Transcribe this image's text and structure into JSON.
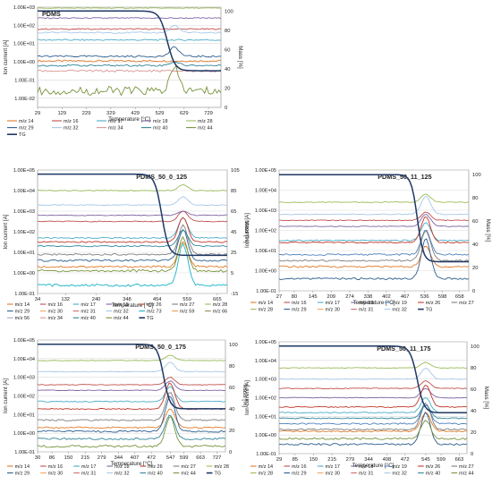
{
  "palette": {
    "m14": "#E07B2B",
    "m16": "#C0504D",
    "m17": "#4BACC6",
    "m18": "#8064A2",
    "m19": "#4F81BD",
    "m26": "#C0392B",
    "m27": "#7F7F7F",
    "m28": "#9BBB59",
    "m29": "#2E5E8E",
    "m30": "#F2A65A",
    "m31": "#D46A6A",
    "m32": "#A6C8E8",
    "m34": "#D99694",
    "m40": "#31859C",
    "m44": "#77933C",
    "m56": "#B3A2C7",
    "m59": "#F79646",
    "m66": "#948A54",
    "m73": "#17B3C4",
    "tg": "#1F3864"
  },
  "chart_data": [
    {
      "type": "line",
      "title": "PDMS",
      "xlabel": "Temperature [°C]",
      "ylabel": "Ion current [A]",
      "ylabel2": "Mass [%]",
      "x_ticks": [
        "29",
        "129",
        "229",
        "329",
        "429",
        "529",
        "629",
        "729"
      ],
      "x_range": [
        29,
        780
      ],
      "y_tick_labels": [
        "1.00E-02",
        "1.00E-01",
        "1.00E+00",
        "1.00E+01",
        "1.00E+02",
        "1.00E+03"
      ],
      "y_log_range": [
        -2.5,
        3
      ],
      "y2_ticks": [
        0,
        20,
        40,
        60,
        80,
        100
      ],
      "y2_range": [
        0,
        104
      ],
      "grid": true,
      "legend_position": "bottom",
      "legend": [
        "m/z 14",
        "m/z 16",
        "m/z 17",
        "m/z 18",
        "m/z 28",
        "m/z 29",
        "m/z 32",
        "m/z 34",
        "m/z 40",
        "m/z 44",
        "TG"
      ],
      "legend_columns": 5,
      "series": [
        {
          "name": "m/z 14",
          "ckey": "m14",
          "base": 0.05,
          "peak": 0,
          "noise": 0.05
        },
        {
          "name": "m/z 16",
          "ckey": "m16",
          "base": 1.8,
          "peak": 0,
          "noise": 0.03
        },
        {
          "name": "m/z 17",
          "ckey": "m17",
          "base": 1.2,
          "peak": 0,
          "noise": 0.04
        },
        {
          "name": "m/z 18",
          "ckey": "m18",
          "base": 2.4,
          "peak": 0,
          "noise": 0.03
        },
        {
          "name": "m/z 28",
          "ckey": "m28",
          "base": 2.95,
          "peak": 0,
          "noise": 0.02
        },
        {
          "name": "m/z 29",
          "ckey": "m29",
          "base": 0.3,
          "peak": 0.5,
          "noise": 0.05
        },
        {
          "name": "m/z 32",
          "ckey": "m32",
          "base": 1.6,
          "peak": 0.4,
          "noise": 0.04
        },
        {
          "name": "m/z 34",
          "ckey": "m34",
          "base": -0.5,
          "peak": 0,
          "noise": 0.06
        },
        {
          "name": "m/z 40",
          "ckey": "m40",
          "base": -0.2,
          "peak": 0.2,
          "noise": 0.05
        },
        {
          "name": "m/z 44",
          "ckey": "m44",
          "base": -1.6,
          "peak": 1.2,
          "noise": 0.25
        }
      ],
      "tg": {
        "name": "TG",
        "start": 100,
        "end": 38,
        "onset": 560,
        "width": 45
      },
      "peak_at": 590
    },
    {
      "type": "line",
      "title": "PDMS_50_0_125",
      "xlabel": "Temperature [°C]",
      "ylabel": "Ion current [A]",
      "ylabel2": "Mass [%]",
      "x_ticks": [
        "34",
        "132",
        "240",
        "348",
        "454",
        "559",
        "665"
      ],
      "x_range": [
        34,
        700
      ],
      "y_tick_labels": [
        "1.00E-01",
        "1.00E+00",
        "1.00E+01",
        "1.00E+02",
        "1.00E+03",
        "1.00E+04",
        "1.00E+05"
      ],
      "y_log_range": [
        -1,
        5
      ],
      "y2_ticks": [
        -15,
        5,
        25,
        45,
        65,
        85,
        105
      ],
      "y2_range": [
        -15,
        105
      ],
      "grid": true,
      "legend_position": "bottom",
      "legend": [
        "m/z 14",
        "m/z 16",
        "m/z 17",
        "m/z 18",
        "m/z 26",
        "m/z 27",
        "m/z 28",
        "m/z 29",
        "m/z 30",
        "m/z 31",
        "m/z 32",
        "m/z 73",
        "m/z 59",
        "m/z 66",
        "m/z 56",
        "m/z 34",
        "m/z 40",
        "m/z 44",
        "TG"
      ],
      "legend_columns": 7,
      "series": [
        {
          "name": "m/z 14",
          "ckey": "m14",
          "base": 0.3,
          "peak": 1.2,
          "noise": 0.05
        },
        {
          "name": "m/z 16",
          "ckey": "m16",
          "base": 2.5,
          "peak": 0.5,
          "noise": 0.02
        },
        {
          "name": "m/z 17",
          "ckey": "m17",
          "base": 1.7,
          "peak": 1.0,
          "noise": 0.03
        },
        {
          "name": "m/z 18",
          "ckey": "m18",
          "base": 2.8,
          "peak": 0.2,
          "noise": 0.02
        },
        {
          "name": "m/z 26",
          "ckey": "m26",
          "base": 1.5,
          "peak": 1.2,
          "noise": 0.03
        },
        {
          "name": "m/z 27",
          "ckey": "m27",
          "base": 0.9,
          "peak": 1.4,
          "noise": 0.04
        },
        {
          "name": "m/z 28",
          "ckey": "m28",
          "base": 4.0,
          "peak": 0.3,
          "noise": 0.02
        },
        {
          "name": "m/z 29",
          "ckey": "m29",
          "base": 0.6,
          "peak": 1.5,
          "noise": 0.05
        },
        {
          "name": "m/z 32",
          "ckey": "m32",
          "base": 3.3,
          "peak": 0.4,
          "noise": 0.02
        },
        {
          "name": "m/z 73",
          "ckey": "m73",
          "base": -0.6,
          "peak": 2.0,
          "noise": 0.06
        },
        {
          "name": "m/z 40",
          "ckey": "m40",
          "base": 1.3,
          "peak": 0.8,
          "noise": 0.03
        },
        {
          "name": "m/z 44",
          "ckey": "m44",
          "base": 0.1,
          "peak": 1.6,
          "noise": 0.06
        }
      ],
      "tg": {
        "name": "TG",
        "start": 101,
        "end": 22,
        "onset": 470,
        "width": 35
      },
      "peak_at": 545
    },
    {
      "type": "line",
      "title": "PDMS_50_11_125",
      "xlabel": "Temperature [°C]",
      "ylabel": "Ion current [A]",
      "ylabel2": "Mass [%]",
      "x_ticks": [
        "27",
        "80",
        "145",
        "209",
        "274",
        "338",
        "402",
        "467",
        "536",
        "598",
        "658"
      ],
      "x_range": [
        27,
        690
      ],
      "y_tick_labels": [
        "1.00E-01",
        "1.00E+00",
        "1.00E+01",
        "1.00E+02",
        "1.00E+03",
        "1.00E+04",
        "1.00E+05"
      ],
      "y_log_range": [
        -1,
        5
      ],
      "y2_ticks": [
        0,
        20,
        40,
        60,
        80,
        100
      ],
      "y2_range": [
        0,
        104
      ],
      "grid": true,
      "legend_position": "bottom",
      "legend": [
        "m/z 14",
        "m/z 16",
        "m/z 17",
        "m/z 18",
        "m/z 19",
        "m/z 26",
        "m/z 27",
        "m/z 28",
        "m/z 29",
        "m/z 30",
        "m/z 31",
        "m/z 32",
        "TG"
      ],
      "legend_columns": 7,
      "series": [
        {
          "name": "m/z 14",
          "ckey": "m14",
          "base": 0.2,
          "peak": 1.0,
          "noise": 0.05
        },
        {
          "name": "m/z 16",
          "ckey": "m16",
          "base": 2.5,
          "peak": 0.4,
          "noise": 0.02
        },
        {
          "name": "m/z 17",
          "ckey": "m17",
          "base": 1.5,
          "peak": 0.9,
          "noise": 0.03
        },
        {
          "name": "m/z 18",
          "ckey": "m18",
          "base": 2.2,
          "peak": 0.6,
          "noise": 0.02
        },
        {
          "name": "m/z 19",
          "ckey": "m19",
          "base": 0.8,
          "peak": 1.2,
          "noise": 0.04
        },
        {
          "name": "m/z 26",
          "ckey": "m26",
          "base": 1.4,
          "peak": 1.3,
          "noise": 0.03
        },
        {
          "name": "m/z 27",
          "ckey": "m27",
          "base": 0.5,
          "peak": 1.5,
          "noise": 0.04
        },
        {
          "name": "m/z 28",
          "ckey": "m28",
          "base": 3.4,
          "peak": 0.4,
          "noise": 0.02
        },
        {
          "name": "m/z 29",
          "ckey": "m29",
          "base": -0.4,
          "peak": 2.0,
          "noise": 0.05
        },
        {
          "name": "m/z 32",
          "ckey": "m32",
          "base": 2.8,
          "peak": 0.9,
          "noise": 0.02
        }
      ],
      "tg": {
        "name": "TG",
        "start": 100,
        "end": 25,
        "onset": 510,
        "width": 30
      },
      "peak_at": 540
    },
    {
      "type": "line",
      "title": "PDMS_50_0_175",
      "xlabel": "Temperature [°C]",
      "ylabel": "Ion current [A]",
      "ylabel2": "Mass [%]",
      "x_ticks": [
        "30",
        "86",
        "150",
        "215",
        "279",
        "344",
        "407",
        "472",
        "547",
        "599",
        "663",
        "727"
      ],
      "x_range": [
        30,
        760
      ],
      "y_tick_labels": [
        "1.00E-01",
        "1.00E+00",
        "1.00E+01",
        "1.00E+02",
        "1.00E+03",
        "1.00E+04",
        "1.00E+05"
      ],
      "y_log_range": [
        -1,
        5
      ],
      "y2_ticks": [
        0,
        20,
        40,
        60,
        80,
        100
      ],
      "y2_range": [
        0,
        104
      ],
      "grid": true,
      "legend_position": "bottom",
      "legend": [
        "m/z 14",
        "m/z 16",
        "m/z 17",
        "m/z 18",
        "m/z 26",
        "m/z 27",
        "m/z 28",
        "m/z 29",
        "m/z 30",
        "m/z 31",
        "m/z 32",
        "m/z 40",
        "m/z 44",
        "TG"
      ],
      "legend_columns": 7,
      "series": [
        {
          "name": "m/z 14",
          "ckey": "m14",
          "base": 0.3,
          "peak": 1.0,
          "noise": 0.04
        },
        {
          "name": "m/z 16",
          "ckey": "m16",
          "base": 2.6,
          "peak": 0.4,
          "noise": 0.02
        },
        {
          "name": "m/z 17",
          "ckey": "m17",
          "base": 1.7,
          "peak": 0.8,
          "noise": 0.03
        },
        {
          "name": "m/z 18",
          "ckey": "m18",
          "base": 2.3,
          "peak": 0.5,
          "noise": 0.02
        },
        {
          "name": "m/z 26",
          "ckey": "m26",
          "base": 1.3,
          "peak": 1.4,
          "noise": 0.03
        },
        {
          "name": "m/z 27",
          "ckey": "m27",
          "base": 0.7,
          "peak": 1.5,
          "noise": 0.04
        },
        {
          "name": "m/z 28",
          "ckey": "m28",
          "base": 3.9,
          "peak": 0.3,
          "noise": 0.02
        },
        {
          "name": "m/z 29",
          "ckey": "m29",
          "base": 0.1,
          "peak": 1.9,
          "noise": 0.05
        },
        {
          "name": "m/z 32",
          "ckey": "m32",
          "base": 3.3,
          "peak": 0.5,
          "noise": 0.02
        },
        {
          "name": "m/z 40",
          "ckey": "m40",
          "base": -0.3,
          "peak": 1.3,
          "noise": 0.05
        },
        {
          "name": "m/z 44",
          "ckey": "m44",
          "base": -0.7,
          "peak": 1.6,
          "noise": 0.06
        }
      ],
      "tg": {
        "name": "TG",
        "start": 100,
        "end": 40,
        "onset": 520,
        "width": 35
      },
      "peak_at": 545
    },
    {
      "type": "line",
      "title": "PDMS_50_11_175",
      "xlabel": "Temperature [°C]",
      "ylabel": "Ion current [A]",
      "ylabel2": "Mass [%]",
      "x_ticks": [
        "29",
        "85",
        "150",
        "215",
        "279",
        "344",
        "408",
        "472",
        "545",
        "599",
        "663"
      ],
      "x_range": [
        29,
        690
      ],
      "y_tick_labels": [
        "1.00E-01",
        "1.00E+00",
        "1.00E+01",
        "1.00E+02",
        "1.00E+03",
        "1.00E+04",
        "1.00E+05"
      ],
      "y_log_range": [
        -1,
        5
      ],
      "y2_ticks": [
        0,
        20,
        40,
        60,
        80,
        100
      ],
      "y2_range": [
        0,
        104
      ],
      "grid": true,
      "legend_position": "bottom",
      "legend": [
        "m/z 14",
        "m/z 16",
        "m/z 17",
        "m/z 18",
        "m/z 19",
        "m/z 26",
        "m/z 27",
        "m/z 28",
        "m/z 29",
        "m/z 30",
        "m/z 31",
        "m/z 32",
        "m/z 40",
        "m/z 44"
      ],
      "legend_columns": 7,
      "series": [
        {
          "name": "m/z 14",
          "ckey": "m14",
          "base": 0.2,
          "peak": 1.0,
          "noise": 0.04
        },
        {
          "name": "m/z 16",
          "ckey": "m16",
          "base": 2.5,
          "peak": 0.4,
          "noise": 0.02
        },
        {
          "name": "m/z 17",
          "ckey": "m17",
          "base": 1.2,
          "peak": 0.8,
          "noise": 0.03
        },
        {
          "name": "m/z 18",
          "ckey": "m18",
          "base": 2.0,
          "peak": 0.5,
          "noise": 0.02
        },
        {
          "name": "m/z 19",
          "ckey": "m19",
          "base": 0.6,
          "peak": 1.1,
          "noise": 0.04
        },
        {
          "name": "m/z 26",
          "ckey": "m26",
          "base": 1.5,
          "peak": 1.2,
          "noise": 0.03
        },
        {
          "name": "m/z 27",
          "ckey": "m27",
          "base": 0.3,
          "peak": 1.4,
          "noise": 0.04
        },
        {
          "name": "m/z 28",
          "ckey": "m28",
          "base": 3.6,
          "peak": 0.3,
          "noise": 0.02
        },
        {
          "name": "m/z 29",
          "ckey": "m29",
          "base": -0.5,
          "peak": 1.7,
          "noise": 0.05
        },
        {
          "name": "m/z 32",
          "ckey": "m32",
          "base": 3.0,
          "peak": 0.6,
          "noise": 0.02
        },
        {
          "name": "m/z 40",
          "ckey": "m40",
          "base": 0.9,
          "peak": 0.7,
          "noise": 0.03
        },
        {
          "name": "m/z 44",
          "ckey": "m44",
          "base": -0.2,
          "peak": 1.0,
          "noise": 0.05
        }
      ],
      "tg": {
        "name": "TG",
        "start": 100,
        "end": 38,
        "onset": 515,
        "width": 35
      },
      "peak_at": 545
    }
  ]
}
